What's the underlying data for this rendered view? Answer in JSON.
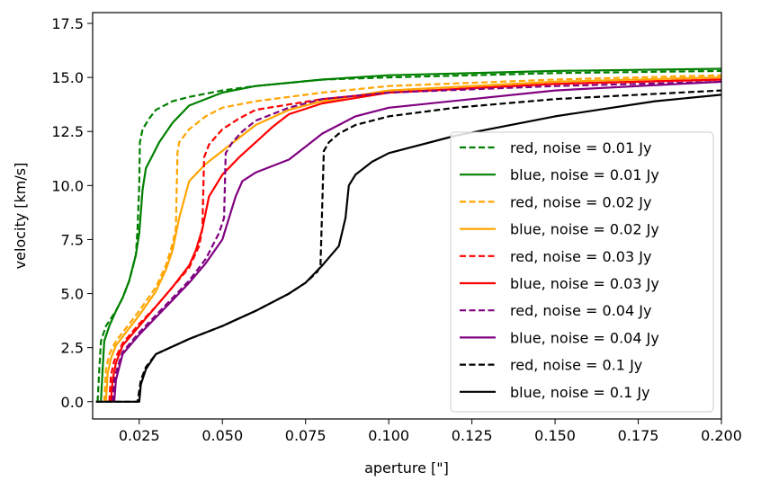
{
  "chart_data": {
    "type": "line",
    "title": "",
    "xlabel": "aperture [\"]",
    "ylabel": "velocity [km/s]",
    "xlim": [
      0.011,
      0.2
    ],
    "ylim": [
      -0.8,
      18.0
    ],
    "xticks": [
      0.025,
      0.05,
      0.075,
      0.1,
      0.125,
      0.15,
      0.175,
      0.2
    ],
    "xtick_labels": [
      "0.025",
      "0.050",
      "0.075",
      "0.100",
      "0.125",
      "0.150",
      "0.175",
      "0.200"
    ],
    "yticks": [
      0.0,
      2.5,
      5.0,
      7.5,
      10.0,
      12.5,
      15.0,
      17.5
    ],
    "ytick_labels": [
      "0.0",
      "2.5",
      "5.0",
      "7.5",
      "10.0",
      "12.5",
      "15.0",
      "17.5"
    ],
    "grid": false,
    "legend_position": "lower-right",
    "series": [
      {
        "name": "red,  noise = 0.01 Jy",
        "color": "#008000",
        "dash": "dashed",
        "x": [
          0.0125,
          0.013,
          0.0135,
          0.015,
          0.018,
          0.02,
          0.022,
          0.024,
          0.0245,
          0.025,
          0.0252,
          0.026,
          0.028,
          0.03,
          0.035,
          0.04,
          0.05,
          0.06,
          0.08,
          0.1,
          0.15,
          0.2
        ],
        "y": [
          0.0,
          1.5,
          2.8,
          3.5,
          4.2,
          4.8,
          5.6,
          6.8,
          8.0,
          10.0,
          12.0,
          12.6,
          13.1,
          13.5,
          13.9,
          14.1,
          14.4,
          14.6,
          14.9,
          15.0,
          15.2,
          15.3
        ]
      },
      {
        "name": "blue, noise = 0.01 Jy",
        "color": "#008000",
        "dash": "solid",
        "x": [
          0.0135,
          0.014,
          0.0145,
          0.016,
          0.018,
          0.02,
          0.022,
          0.024,
          0.025,
          0.026,
          0.027,
          0.029,
          0.031,
          0.035,
          0.04,
          0.05,
          0.06,
          0.08,
          0.1,
          0.15,
          0.2
        ],
        "y": [
          0.0,
          1.5,
          2.8,
          3.5,
          4.2,
          4.8,
          5.6,
          6.8,
          7.8,
          9.8,
          10.8,
          11.4,
          12.0,
          12.9,
          13.7,
          14.3,
          14.6,
          14.9,
          15.1,
          15.3,
          15.4
        ]
      },
      {
        "name": "red,  noise = 0.02 Jy",
        "color": "#FFA500",
        "dash": "dashed",
        "x": [
          0.0145,
          0.015,
          0.016,
          0.018,
          0.02,
          0.025,
          0.03,
          0.033,
          0.035,
          0.036,
          0.0365,
          0.037,
          0.04,
          0.045,
          0.05,
          0.06,
          0.08,
          0.1,
          0.15,
          0.2
        ],
        "y": [
          0.0,
          1.5,
          2.2,
          2.8,
          3.2,
          4.2,
          5.3,
          6.3,
          7.3,
          8.0,
          11.5,
          12.0,
          12.6,
          13.2,
          13.6,
          13.9,
          14.3,
          14.6,
          14.9,
          15.1
        ]
      },
      {
        "name": "blue, noise = 0.02 Jy",
        "color": "#FFA500",
        "dash": "solid",
        "x": [
          0.015,
          0.0155,
          0.0165,
          0.018,
          0.02,
          0.025,
          0.03,
          0.033,
          0.035,
          0.037,
          0.04,
          0.045,
          0.05,
          0.055,
          0.06,
          0.07,
          0.08,
          0.1,
          0.15,
          0.2
        ],
        "y": [
          0.0,
          1.3,
          2.0,
          2.6,
          3.0,
          4.0,
          5.1,
          6.1,
          7.0,
          8.5,
          10.2,
          11.0,
          11.6,
          12.2,
          12.8,
          13.5,
          13.9,
          14.4,
          14.8,
          15.0
        ]
      },
      {
        "name": "red,  noise = 0.03 Jy",
        "color": "#FF0000",
        "dash": "dashed",
        "x": [
          0.016,
          0.0165,
          0.0175,
          0.02,
          0.025,
          0.03,
          0.035,
          0.04,
          0.043,
          0.044,
          0.0445,
          0.046,
          0.05,
          0.055,
          0.06,
          0.08,
          0.1,
          0.15,
          0.2
        ],
        "y": [
          0.0,
          1.2,
          1.9,
          2.7,
          3.6,
          4.4,
          5.3,
          6.2,
          7.2,
          8.0,
          11.3,
          11.9,
          12.6,
          13.1,
          13.5,
          14.0,
          14.3,
          14.7,
          14.9
        ]
      },
      {
        "name": "blue, noise = 0.03 Jy",
        "color": "#FF0000",
        "dash": "solid",
        "x": [
          0.0165,
          0.017,
          0.018,
          0.02,
          0.025,
          0.03,
          0.035,
          0.04,
          0.042,
          0.044,
          0.046,
          0.05,
          0.055,
          0.06,
          0.065,
          0.07,
          0.08,
          0.1,
          0.15,
          0.2
        ],
        "y": [
          0.0,
          1.0,
          1.8,
          2.6,
          3.5,
          4.4,
          5.3,
          6.3,
          7.0,
          8.0,
          9.5,
          10.5,
          11.3,
          12.0,
          12.7,
          13.3,
          13.8,
          14.3,
          14.7,
          14.9
        ]
      },
      {
        "name": "red,  noise = 0.04 Jy",
        "color": "#800080",
        "dash": "dashed",
        "x": [
          0.017,
          0.0175,
          0.0185,
          0.02,
          0.025,
          0.03,
          0.035,
          0.04,
          0.045,
          0.049,
          0.0505,
          0.051,
          0.053,
          0.056,
          0.06,
          0.07,
          0.08,
          0.1,
          0.15,
          0.2
        ],
        "y": [
          0.0,
          1.0,
          1.6,
          2.3,
          3.2,
          4.0,
          4.8,
          5.6,
          6.6,
          7.8,
          8.5,
          11.5,
          12.0,
          12.5,
          13.0,
          13.6,
          14.0,
          14.3,
          14.6,
          14.8
        ]
      },
      {
        "name": "blue, noise = 0.04 Jy",
        "color": "#800080",
        "dash": "solid",
        "x": [
          0.0175,
          0.018,
          0.019,
          0.02,
          0.025,
          0.03,
          0.035,
          0.04,
          0.045,
          0.05,
          0.052,
          0.054,
          0.056,
          0.06,
          0.07,
          0.075,
          0.08,
          0.09,
          0.1,
          0.15,
          0.2
        ],
        "y": [
          0.0,
          1.0,
          1.6,
          2.2,
          3.1,
          3.9,
          4.7,
          5.5,
          6.4,
          7.5,
          8.5,
          9.5,
          10.2,
          10.6,
          11.2,
          11.8,
          12.4,
          13.2,
          13.6,
          14.4,
          14.8
        ]
      },
      {
        "name": "red,  noise = 0.1 Jy",
        "color": "#000000",
        "dash": "dashed",
        "x": [
          0.012,
          0.0245,
          0.0255,
          0.027,
          0.03,
          0.04,
          0.05,
          0.06,
          0.07,
          0.075,
          0.0785,
          0.0795,
          0.0805,
          0.082,
          0.085,
          0.09,
          0.1,
          0.12,
          0.15,
          0.2
        ],
        "y": [
          0.0,
          0.0,
          1.0,
          1.6,
          2.2,
          2.9,
          3.5,
          4.2,
          5.0,
          5.5,
          6.0,
          6.3,
          11.6,
          12.0,
          12.4,
          12.8,
          13.2,
          13.6,
          14.0,
          14.4
        ]
      },
      {
        "name": "blue, noise = 0.1 Jy",
        "color": "#000000",
        "dash": "solid",
        "x": [
          0.012,
          0.025,
          0.0255,
          0.027,
          0.03,
          0.04,
          0.05,
          0.06,
          0.07,
          0.075,
          0.08,
          0.085,
          0.087,
          0.088,
          0.09,
          0.095,
          0.1,
          0.12,
          0.15,
          0.18,
          0.2
        ],
        "y": [
          0.0,
          0.0,
          0.8,
          1.5,
          2.2,
          2.9,
          3.5,
          4.2,
          5.0,
          5.5,
          6.3,
          7.2,
          8.5,
          10.0,
          10.5,
          11.1,
          11.5,
          12.3,
          13.2,
          13.9,
          14.2
        ]
      }
    ]
  }
}
